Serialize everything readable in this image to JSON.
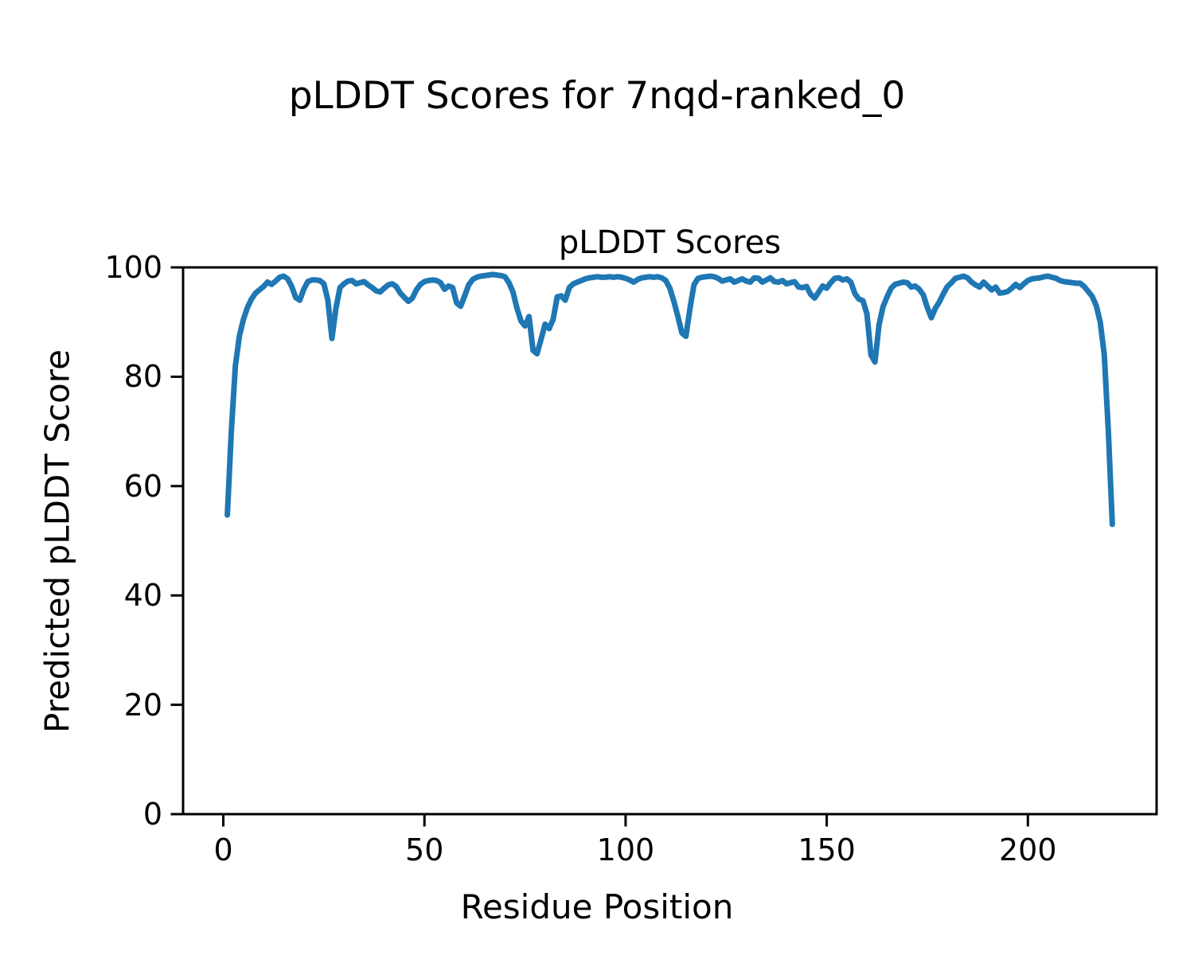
{
  "page": {
    "suptitle": "pLDDT Scores for 7nqd-ranked_0"
  },
  "chart_data": {
    "type": "line",
    "title": "pLDDT Scores",
    "xlabel": "Residue Position",
    "ylabel": "Predicted pLDDT Score",
    "xlim": [
      -10,
      232
    ],
    "ylim": [
      0,
      100
    ],
    "x_ticks": [
      0,
      50,
      100,
      150,
      200
    ],
    "y_ticks": [
      0,
      20,
      40,
      60,
      80,
      100
    ],
    "grid": false,
    "legend": null,
    "line_color": "#1f77b4",
    "axis_color": "#000000",
    "series": [
      {
        "name": "pLDDT",
        "x_start": 1,
        "x_step": 1,
        "values": [
          54.7,
          70.0,
          82.0,
          87.5,
          90.5,
          92.7,
          94.2,
          95.3,
          95.9,
          96.5,
          97.3,
          96.9,
          97.5,
          98.2,
          98.4,
          97.9,
          96.5,
          94.5,
          94.0,
          96.0,
          97.4,
          97.7,
          97.7,
          97.6,
          97.0,
          94.0,
          87.0,
          92.5,
          96.3,
          97.0,
          97.5,
          97.6,
          97.0,
          97.2,
          97.4,
          96.8,
          96.3,
          95.7,
          95.5,
          96.2,
          96.8,
          97.0,
          96.5,
          95.3,
          94.5,
          93.8,
          94.4,
          95.9,
          96.9,
          97.4,
          97.6,
          97.7,
          97.6,
          97.2,
          96.0,
          96.6,
          96.3,
          93.5,
          92.9,
          94.8,
          96.8,
          97.8,
          98.2,
          98.4,
          98.5,
          98.6,
          98.7,
          98.6,
          98.5,
          98.3,
          97.2,
          95.5,
          92.5,
          90.2,
          89.3,
          91.0,
          84.8,
          84.2,
          86.9,
          89.6,
          88.8,
          90.5,
          94.6,
          94.8,
          94.0,
          96.3,
          97.0,
          97.3,
          97.6,
          97.9,
          98.1,
          98.2,
          98.3,
          98.2,
          98.2,
          98.3,
          98.2,
          98.3,
          98.2,
          98.0,
          97.7,
          97.3,
          97.8,
          98.1,
          98.2,
          98.3,
          98.2,
          98.3,
          98.1,
          97.6,
          96.2,
          93.8,
          91.0,
          88.0,
          87.4,
          92.5,
          96.8,
          98.0,
          98.2,
          98.3,
          98.4,
          98.3,
          98.0,
          97.5,
          97.7,
          97.9,
          97.3,
          97.6,
          97.9,
          97.5,
          97.3,
          98.1,
          98.0,
          97.3,
          97.7,
          98.1,
          97.4,
          97.3,
          97.6,
          97.0,
          97.2,
          97.4,
          96.4,
          96.3,
          96.5,
          95.1,
          94.4,
          95.5,
          96.6,
          96.2,
          97.2,
          98.0,
          98.1,
          97.7,
          97.9,
          97.3,
          95.2,
          94.2,
          93.9,
          91.5,
          84.0,
          82.7,
          89.5,
          92.8,
          94.6,
          96.2,
          96.9,
          97.1,
          97.3,
          97.2,
          96.4,
          96.6,
          96.0,
          95.0,
          92.7,
          90.8,
          92.5,
          93.7,
          95.2,
          96.5,
          97.2,
          98.0,
          98.2,
          98.4,
          98.1,
          97.3,
          96.8,
          96.4,
          97.3,
          96.6,
          95.9,
          96.4,
          95.3,
          95.4,
          95.6,
          96.2,
          96.9,
          96.3,
          97.0,
          97.6,
          97.9,
          98.0,
          98.1,
          98.3,
          98.4,
          98.2,
          98.0,
          97.6,
          97.4,
          97.3,
          97.2,
          97.1,
          97.1,
          96.5,
          95.6,
          94.7,
          93.0,
          90.0,
          84.0,
          70.0,
          53.0
        ]
      }
    ]
  }
}
